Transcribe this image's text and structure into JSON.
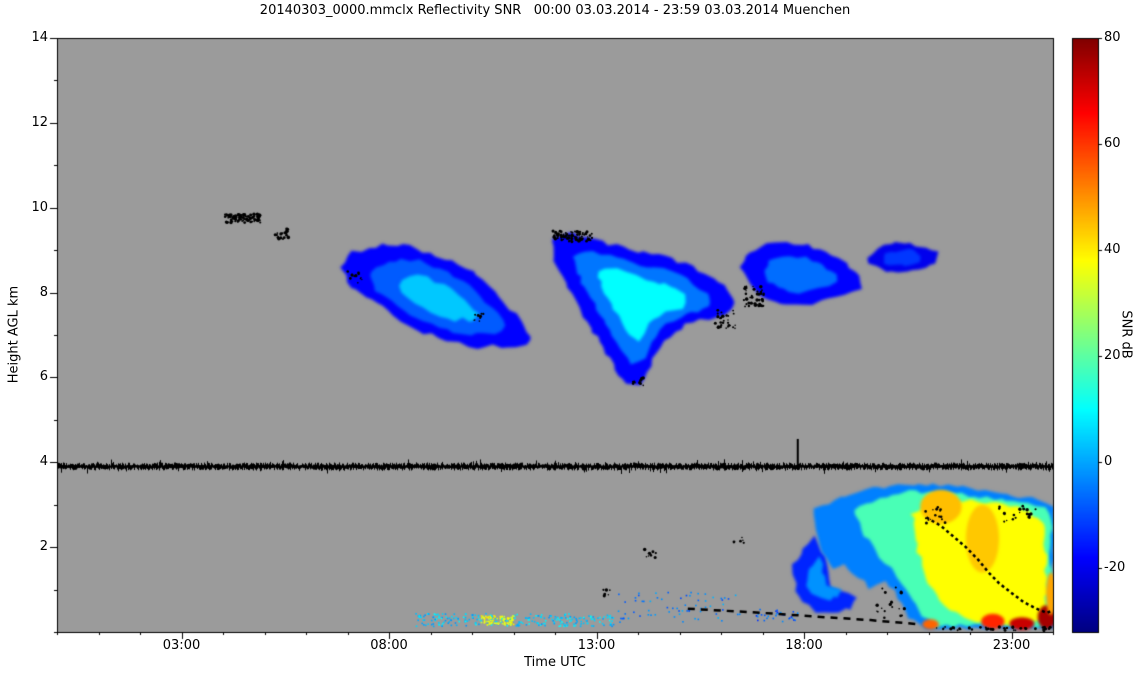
{
  "chart_data": {
    "type": "heatmap",
    "title": "20140303_0000.mmclx Reflectivity SNR   00:00 03.03.2014 - 23:59 03.03.2014 Muenchen",
    "xlabel": "Time UTC",
    "ylabel": "Height AGL km",
    "x_axis": {
      "unit": "UTC hours",
      "min": 0,
      "max": 24,
      "major_ticks": [
        {
          "hour": 3,
          "label": "03:00"
        },
        {
          "hour": 8,
          "label": "08:00"
        },
        {
          "hour": 13,
          "label": "13:00"
        },
        {
          "hour": 18,
          "label": "18:00"
        },
        {
          "hour": 23,
          "label": "23:00"
        }
      ],
      "minor_tick_hours": 1
    },
    "y_axis": {
      "unit": "km",
      "min": 0,
      "max": 14,
      "major_ticks": [
        2,
        4,
        6,
        8,
        10,
        12,
        14
      ],
      "minor_tick_km": 1
    },
    "colorbar": {
      "label": "SNR dB",
      "min": -32,
      "max": 80,
      "ticks": [
        -20,
        0,
        20,
        40,
        60,
        80
      ],
      "colormap": "jet"
    },
    "colors": {
      "no_data": "#9b9b9b",
      "frame": "#000000",
      "background": "#ffffff",
      "clutter": "#000000"
    },
    "features": {
      "clouds": [
        {
          "name": "mid-level-cloud-morning",
          "outline": [
            [
              6.85,
              8.55
            ],
            [
              7.1,
              8.95
            ],
            [
              7.5,
              9.05
            ],
            [
              8.0,
              9.15
            ],
            [
              8.5,
              9.1
            ],
            [
              9.0,
              8.9
            ],
            [
              9.5,
              8.75
            ],
            [
              10.0,
              8.5
            ],
            [
              10.4,
              8.15
            ],
            [
              10.8,
              7.75
            ],
            [
              11.15,
              7.35
            ],
            [
              11.45,
              7.0
            ],
            [
              11.3,
              6.75
            ],
            [
              10.9,
              6.68
            ],
            [
              10.5,
              6.75
            ],
            [
              10.1,
              6.7
            ],
            [
              9.7,
              6.8
            ],
            [
              9.2,
              6.95
            ],
            [
              8.7,
              7.1
            ],
            [
              8.25,
              7.35
            ],
            [
              7.85,
              7.65
            ],
            [
              7.45,
              7.9
            ],
            [
              7.1,
              8.15
            ]
          ],
          "layers": [
            {
              "snr": -18,
              "scale": 1.0
            },
            {
              "snr": -8,
              "scale": 0.72
            },
            {
              "snr": 4,
              "scale": 0.42
            }
          ]
        },
        {
          "name": "mid-level-cloud-afternoon",
          "outline": [
            [
              11.9,
              9.25
            ],
            [
              12.3,
              9.4
            ],
            [
              12.8,
              9.3
            ],
            [
              13.3,
              9.15
            ],
            [
              13.8,
              9.0
            ],
            [
              14.3,
              8.9
            ],
            [
              14.8,
              8.8
            ],
            [
              15.3,
              8.6
            ],
            [
              15.8,
              8.35
            ],
            [
              16.2,
              8.05
            ],
            [
              16.35,
              7.75
            ],
            [
              16.1,
              7.5
            ],
            [
              15.7,
              7.4
            ],
            [
              15.3,
              7.3
            ],
            [
              14.9,
              7.1
            ],
            [
              14.55,
              6.7
            ],
            [
              14.3,
              6.25
            ],
            [
              14.05,
              5.85
            ],
            [
              13.75,
              5.85
            ],
            [
              13.45,
              6.2
            ],
            [
              13.15,
              6.7
            ],
            [
              12.85,
              7.2
            ],
            [
              12.55,
              7.7
            ],
            [
              12.25,
              8.2
            ],
            [
              12.0,
              8.7
            ]
          ],
          "layers": [
            {
              "snr": -18,
              "scale": 1.0
            },
            {
              "snr": -5,
              "scale": 0.75
            },
            {
              "snr": 10,
              "scale": 0.48
            }
          ]
        },
        {
          "name": "mid-level-cloud-evening",
          "outline": [
            [
              16.45,
              8.6
            ],
            [
              16.7,
              8.95
            ],
            [
              17.1,
              9.15
            ],
            [
              17.6,
              9.2
            ],
            [
              18.1,
              9.1
            ],
            [
              18.55,
              8.95
            ],
            [
              19.0,
              8.7
            ],
            [
              19.3,
              8.4
            ],
            [
              19.35,
              8.1
            ],
            [
              19.0,
              7.95
            ],
            [
              18.6,
              7.85
            ],
            [
              18.2,
              7.75
            ],
            [
              17.8,
              7.7
            ],
            [
              17.4,
              7.75
            ],
            [
              17.0,
              7.9
            ],
            [
              16.65,
              8.2
            ]
          ],
          "layers": [
            {
              "snr": -18,
              "scale": 1.0
            },
            {
              "snr": -6,
              "scale": 0.6
            }
          ]
        },
        {
          "name": "cirrus-patch-late-evening",
          "outline": [
            [
              19.5,
              8.85
            ],
            [
              19.9,
              9.1
            ],
            [
              20.4,
              9.2
            ],
            [
              20.9,
              9.1
            ],
            [
              21.25,
              8.95
            ],
            [
              21.2,
              8.7
            ],
            [
              20.8,
              8.55
            ],
            [
              20.3,
              8.5
            ],
            [
              19.85,
              8.55
            ],
            [
              19.55,
              8.65
            ]
          ],
          "layers": [
            {
              "snr": -20,
              "scale": 1.0
            },
            {
              "snr": -12,
              "scale": 0.55
            }
          ]
        },
        {
          "name": "low-cloud-left-patch",
          "outline": [
            [
              17.75,
              1.55
            ],
            [
              18.0,
              1.95
            ],
            [
              18.25,
              2.25
            ],
            [
              18.45,
              1.9
            ],
            [
              18.55,
              1.45
            ],
            [
              18.65,
              1.05
            ],
            [
              18.95,
              0.95
            ],
            [
              19.25,
              0.85
            ],
            [
              19.15,
              0.55
            ],
            [
              18.7,
              0.45
            ],
            [
              18.3,
              0.5
            ],
            [
              18.0,
              0.7
            ],
            [
              17.8,
              1.0
            ]
          ],
          "layers": [
            {
              "snr": -14,
              "scale": 1.0
            },
            {
              "snr": -2,
              "scale": 0.55
            }
          ]
        },
        {
          "name": "boundary-layer-precip-evening",
          "outline": [
            [
              18.25,
              2.9
            ],
            [
              18.6,
              3.05
            ],
            [
              19.0,
              3.2
            ],
            [
              19.5,
              3.35
            ],
            [
              20.1,
              3.45
            ],
            [
              20.8,
              3.5
            ],
            [
              21.5,
              3.45
            ],
            [
              22.2,
              3.35
            ],
            [
              22.9,
              3.25
            ],
            [
              23.5,
              3.15
            ],
            [
              24.0,
              2.95
            ],
            [
              24.0,
              0.08
            ],
            [
              20.9,
              0.08
            ],
            [
              20.55,
              0.35
            ],
            [
              20.25,
              0.8
            ],
            [
              19.95,
              1.25
            ],
            [
              19.6,
              1.05
            ],
            [
              19.3,
              1.3
            ],
            [
              19.0,
              1.6
            ],
            [
              18.7,
              1.5
            ],
            [
              18.45,
              1.9
            ],
            [
              18.3,
              2.4
            ]
          ],
          "layers": [
            {
              "snr": -4,
              "scale": 1.0
            },
            {
              "snr": 18,
              "outline": [
                [
                  19.2,
                  2.9
                ],
                [
                  19.8,
                  3.15
                ],
                [
                  20.5,
                  3.3
                ],
                [
                  21.3,
                  3.3
                ],
                [
                  22.1,
                  3.2
                ],
                [
                  22.9,
                  3.1
                ],
                [
                  23.6,
                  3.0
                ],
                [
                  23.95,
                  2.8
                ],
                [
                  23.95,
                  0.15
                ],
                [
                  21.1,
                  0.15
                ],
                [
                  20.75,
                  0.5
                ],
                [
                  20.45,
                  1.0
                ],
                [
                  20.1,
                  1.5
                ],
                [
                  19.7,
                  1.9
                ],
                [
                  19.4,
                  2.4
                ]
              ]
            },
            {
              "snr": 38,
              "outline": [
                [
                  20.6,
                  2.8
                ],
                [
                  21.2,
                  3.05
                ],
                [
                  22.0,
                  3.1
                ],
                [
                  22.8,
                  3.0
                ],
                [
                  23.4,
                  2.85
                ],
                [
                  23.8,
                  2.6
                ],
                [
                  23.85,
                  0.3
                ],
                [
                  23.0,
                  0.2
                ],
                [
                  22.2,
                  0.25
                ],
                [
                  21.5,
                  0.5
                ],
                [
                  21.0,
                  1.1
                ],
                [
                  20.75,
                  1.9
                ]
              ]
            }
          ]
        }
      ],
      "spots": [
        {
          "t": 21.05,
          "h": 0.18,
          "rt": 0.2,
          "rh": 0.12,
          "snr": 55
        },
        {
          "t": 22.55,
          "h": 0.25,
          "rt": 0.28,
          "rh": 0.18,
          "snr": 62
        },
        {
          "t": 23.25,
          "h": 0.2,
          "rt": 0.3,
          "rh": 0.15,
          "snr": 72
        },
        {
          "t": 23.85,
          "h": 0.35,
          "rt": 0.22,
          "rh": 0.28,
          "snr": 76
        },
        {
          "t": 23.95,
          "h": 0.9,
          "rt": 0.12,
          "rh": 0.5,
          "snr": 48
        },
        {
          "t": 21.3,
          "h": 2.95,
          "rt": 0.5,
          "rh": 0.4,
          "snr": 45
        },
        {
          "t": 22.3,
          "h": 2.2,
          "rt": 0.4,
          "rh": 0.8,
          "snr": 44
        }
      ],
      "noise_line": {
        "h": 3.9,
        "t0": 0,
        "t1": 24,
        "spike_t": 17.85,
        "spike_top": 4.55
      },
      "speckle_clusters": [
        {
          "t0": 4.05,
          "t1": 4.95,
          "h0": 9.65,
          "h1": 9.85,
          "count": 90
        },
        {
          "t0": 5.25,
          "t1": 5.6,
          "h0": 9.25,
          "h1": 9.5,
          "count": 20
        },
        {
          "t0": 7.0,
          "t1": 7.35,
          "h0": 8.2,
          "h1": 8.5,
          "count": 12
        },
        {
          "t0": 10.05,
          "t1": 10.3,
          "h0": 7.3,
          "h1": 7.5,
          "count": 10
        },
        {
          "t0": 11.95,
          "t1": 12.9,
          "h0": 9.2,
          "h1": 9.45,
          "count": 80
        },
        {
          "t0": 13.85,
          "t1": 14.15,
          "h0": 5.8,
          "h1": 6.0,
          "count": 10
        },
        {
          "t0": 15.85,
          "t1": 16.35,
          "h0": 7.15,
          "h1": 7.6,
          "count": 28
        },
        {
          "t0": 16.55,
          "t1": 17.05,
          "h0": 7.65,
          "h1": 8.15,
          "count": 45
        },
        {
          "t0": 13.1,
          "t1": 13.35,
          "h0": 0.85,
          "h1": 1.05,
          "count": 8
        },
        {
          "t0": 14.15,
          "t1": 14.45,
          "h0": 1.75,
          "h1": 1.95,
          "count": 8
        },
        {
          "t0": 16.3,
          "t1": 16.55,
          "h0": 2.1,
          "h1": 2.3,
          "count": 6
        },
        {
          "t0": 19.7,
          "t1": 20.5,
          "h0": 0.3,
          "h1": 1.1,
          "count": 18
        },
        {
          "t0": 20.9,
          "t1": 21.4,
          "h0": 2.5,
          "h1": 2.95,
          "count": 16
        },
        {
          "t0": 22.7,
          "t1": 23.6,
          "h0": 2.6,
          "h1": 3.0,
          "count": 22
        },
        {
          "t0": 21.0,
          "t1": 24.0,
          "h0": 0.03,
          "h1": 0.12,
          "count": 40
        }
      ],
      "dashed_lines": [
        {
          "pts": [
            [
              15.2,
              0.55
            ],
            [
              17.0,
              0.45
            ],
            [
              18.5,
              0.35
            ],
            [
              19.6,
              0.28
            ],
            [
              20.8,
              0.18
            ]
          ],
          "dash": [
            7,
            6
          ],
          "width": 2.5
        },
        {
          "pts": [
            [
              20.95,
              2.7
            ],
            [
              21.3,
              2.5
            ],
            [
              21.6,
              2.25
            ],
            [
              21.9,
              2.0
            ],
            [
              22.2,
              1.7
            ],
            [
              22.45,
              1.4
            ],
            [
              22.7,
              1.15
            ],
            [
              23.0,
              0.92
            ],
            [
              23.3,
              0.7
            ],
            [
              23.6,
              0.55
            ],
            [
              23.85,
              0.45
            ],
            [
              24.0,
              0.52
            ]
          ],
          "dash": [
            3,
            3
          ],
          "width": 2.5
        }
      ],
      "surface_echoes": [
        {
          "t0": 8.6,
          "t1": 13.4,
          "h0": 0.15,
          "h1": 0.45,
          "snr": 4,
          "count": 260
        },
        {
          "t0": 10.2,
          "t1": 11.0,
          "h0": 0.18,
          "h1": 0.4,
          "snr": 36,
          "count": 90
        },
        {
          "t0": 13.5,
          "t1": 16.5,
          "h0": 0.25,
          "h1": 0.95,
          "snr": -4,
          "count": 70
        },
        {
          "t0": 16.8,
          "t1": 17.9,
          "h0": 0.25,
          "h1": 0.6,
          "snr": -8,
          "count": 30
        }
      ]
    }
  }
}
